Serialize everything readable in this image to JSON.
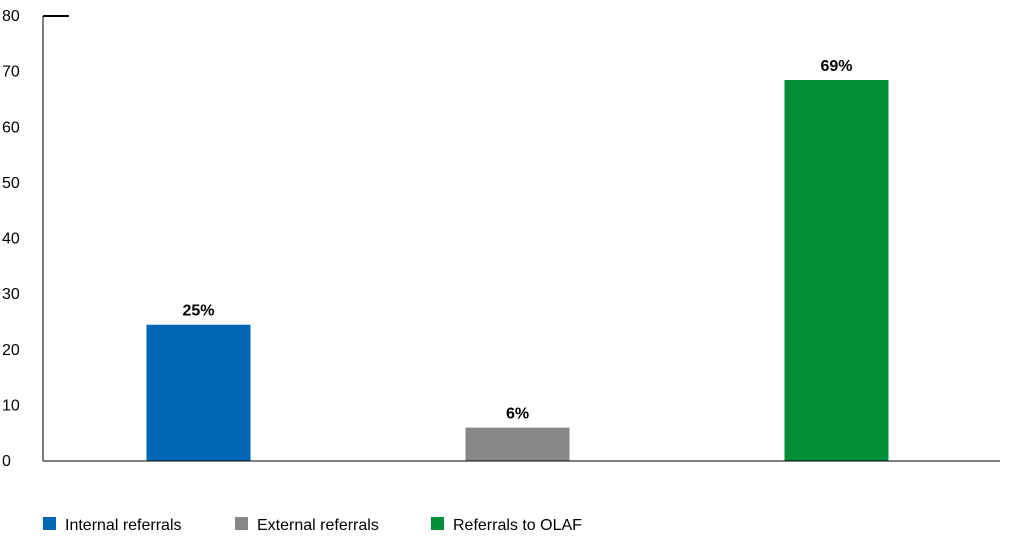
{
  "chart_data": {
    "type": "bar",
    "categories": [
      "Internal referrals",
      "External referrals",
      "Referrals to OLAF"
    ],
    "values": [
      24.5,
      6,
      68.5
    ],
    "data_labels": [
      "25%",
      "6%",
      "69%"
    ],
    "colors": [
      "#0067b5",
      "#878787",
      "#008e36"
    ],
    "title": "",
    "xlabel": "",
    "ylabel": "",
    "ylim": [
      0,
      80
    ],
    "yticks": [
      "0",
      "10",
      "20",
      "30",
      "40",
      "50",
      "60",
      "70",
      "80"
    ],
    "grid": false,
    "legend_position": "bottom-left"
  }
}
